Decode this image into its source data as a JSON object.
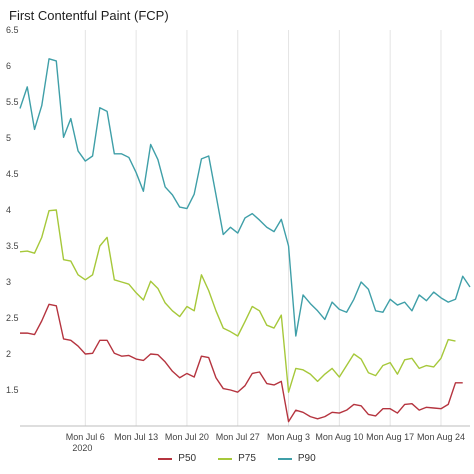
{
  "title": "First Contentful Paint (FCP)",
  "chart_data": {
    "type": "line",
    "title": "First Contentful Paint (FCP)",
    "xlabel": "",
    "ylabel": "",
    "ylim": [
      1.0,
      6.5
    ],
    "yticks": [
      "1.5",
      "2",
      "2.5",
      "3",
      "3.5",
      "4",
      "4.5",
      "5",
      "5.5",
      "6",
      "6.5"
    ],
    "xticks": [
      {
        "label": "Mon Jul 6",
        "sublabel": "2020",
        "index": 9
      },
      {
        "label": "Mon Jul 13",
        "sublabel": "",
        "index": 16
      },
      {
        "label": "Mon Jul 20",
        "sublabel": "",
        "index": 23
      },
      {
        "label": "Mon Jul 27",
        "sublabel": "",
        "index": 30
      },
      {
        "label": "Mon Aug 3",
        "sublabel": "",
        "index": 37
      },
      {
        "label": "Mon Aug 10",
        "sublabel": "",
        "index": 44
      },
      {
        "label": "Mon Aug 17",
        "sublabel": "",
        "index": 51
      },
      {
        "label": "Mon Aug 24",
        "sublabel": "",
        "index": 58
      }
    ],
    "grid": "vertical",
    "legend_position": "bottom-center",
    "series": [
      {
        "name": "P50",
        "color": "#b5343f",
        "values": [
          2.29,
          2.29,
          2.27,
          2.46,
          2.69,
          2.67,
          2.21,
          2.19,
          2.11,
          2.0,
          2.01,
          2.19,
          2.19,
          2.01,
          1.97,
          1.98,
          1.93,
          1.91,
          2.0,
          1.99,
          1.89,
          1.76,
          1.67,
          1.73,
          1.68,
          1.97,
          1.95,
          1.67,
          1.52,
          1.5,
          1.47,
          1.56,
          1.73,
          1.75,
          1.59,
          1.57,
          1.62,
          1.06,
          1.22,
          1.19,
          1.13,
          1.1,
          1.13,
          1.19,
          1.18,
          1.22,
          1.3,
          1.28,
          1.16,
          1.14,
          1.24,
          1.24,
          1.18,
          1.3,
          1.31,
          1.22,
          1.26,
          1.25,
          1.24,
          1.3,
          1.6,
          1.6
        ]
      },
      {
        "name": "P75",
        "color": "#a6c83a",
        "values": [
          3.42,
          3.43,
          3.4,
          3.62,
          3.99,
          4.0,
          3.31,
          3.29,
          3.1,
          3.03,
          3.1,
          3.5,
          3.62,
          3.03,
          3.0,
          2.97,
          2.85,
          2.75,
          3.01,
          2.91,
          2.71,
          2.6,
          2.52,
          2.66,
          2.6,
          3.1,
          2.88,
          2.6,
          2.36,
          2.31,
          2.25,
          2.45,
          2.66,
          2.6,
          2.4,
          2.36,
          2.54,
          1.47,
          1.8,
          1.78,
          1.72,
          1.62,
          1.72,
          1.8,
          1.68,
          1.84,
          2.0,
          1.93,
          1.74,
          1.7,
          1.84,
          1.88,
          1.72,
          1.92,
          1.94,
          1.8,
          1.84,
          1.82,
          1.94,
          2.2,
          2.18
        ]
      },
      {
        "name": "P90",
        "color": "#3f9fa8",
        "values": [
          5.41,
          5.71,
          5.12,
          5.45,
          6.1,
          6.07,
          5.01,
          5.27,
          4.82,
          4.68,
          4.75,
          5.42,
          5.37,
          4.78,
          4.78,
          4.73,
          4.52,
          4.26,
          4.91,
          4.7,
          4.32,
          4.21,
          4.04,
          4.02,
          4.22,
          4.71,
          4.75,
          4.21,
          3.66,
          3.76,
          3.68,
          3.89,
          3.95,
          3.86,
          3.76,
          3.7,
          3.87,
          3.5,
          2.25,
          2.82,
          2.7,
          2.6,
          2.48,
          2.72,
          2.62,
          2.58,
          2.76,
          3.0,
          2.9,
          2.6,
          2.58,
          2.76,
          2.68,
          2.72,
          2.6,
          2.82,
          2.74,
          2.86,
          2.78,
          2.72,
          2.76,
          3.08,
          2.93
        ]
      }
    ]
  }
}
